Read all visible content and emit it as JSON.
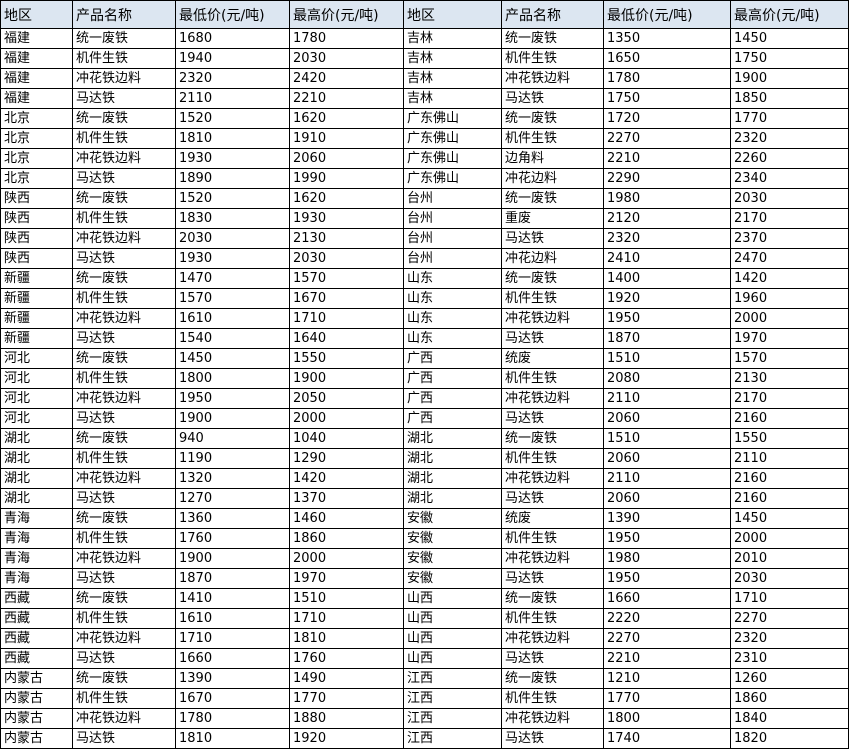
{
  "header": [
    "地区",
    "产品名称",
    "最低价(元/吨)",
    "最高价(元/吨)",
    "地区",
    "产品名称",
    "最低价(元/吨)",
    "最高价(元/吨)"
  ],
  "header_bg": "#dce6f1",
  "rows": [
    [
      "福建",
      "统一废铁",
      "1680",
      "1780",
      "吉林",
      "统一废铁",
      "1350",
      "1450"
    ],
    [
      "福建",
      "机件生铁",
      "1940",
      "2030",
      "吉林",
      "机件生铁",
      "1650",
      "1750"
    ],
    [
      "福建",
      "冲花铁边料",
      "2320",
      "2420",
      "吉林",
      "冲花铁边料",
      "1780",
      "1900"
    ],
    [
      "福建",
      "马达铁",
      "2110",
      "2210",
      "吉林",
      "马达铁",
      "1750",
      "1850"
    ],
    [
      "北京",
      "统一废铁",
      "1520",
      "1620",
      "广东佛山",
      "统一废铁",
      "1720",
      "1770"
    ],
    [
      "北京",
      "机件生铁",
      "1810",
      "1910",
      "广东佛山",
      "机件生铁",
      "2270",
      "2320"
    ],
    [
      "北京",
      "冲花铁边料",
      "1930",
      "2060",
      "广东佛山",
      "边角料",
      "2210",
      "2260"
    ],
    [
      "北京",
      "马达铁",
      "1890",
      "1990",
      "广东佛山",
      "冲花边料",
      "2290",
      "2340"
    ],
    [
      "陕西",
      "统一废铁",
      "1520",
      "1620",
      "台州",
      "统一废铁",
      "1980",
      "2030"
    ],
    [
      "陕西",
      "机件生铁",
      "1830",
      "1930",
      "台州",
      "重废",
      "2120",
      "2170"
    ],
    [
      "陕西",
      "冲花铁边料",
      "2030",
      "2130",
      "台州",
      "马达铁",
      "2320",
      "2370"
    ],
    [
      "陕西",
      "马达铁",
      "1930",
      "2030",
      "台州",
      "冲花边料",
      "2410",
      "2470"
    ],
    [
      "新疆",
      "统一废铁",
      "1470",
      "1570",
      "山东",
      "统一废铁",
      "1400",
      "1420"
    ],
    [
      "新疆",
      "机件生铁",
      "1570",
      "1670",
      "山东",
      "机件生铁",
      "1920",
      "1960"
    ],
    [
      "新疆",
      "冲花铁边料",
      "1610",
      "1710",
      "山东",
      "冲花铁边料",
      "1950",
      "2000"
    ],
    [
      "新疆",
      "马达铁",
      "1540",
      "1640",
      "山东",
      "马达铁",
      "1870",
      "1970"
    ],
    [
      "河北",
      "统一废铁",
      "1450",
      "1550",
      "广西",
      "统废",
      "1510",
      "1570"
    ],
    [
      "河北",
      "机件生铁",
      "1800",
      "1900",
      "广西",
      "机件生铁",
      "2080",
      "2130"
    ],
    [
      "河北",
      "冲花铁边料",
      "1950",
      "2050",
      "广西",
      "冲花铁边料",
      "2110",
      "2170"
    ],
    [
      "河北",
      "马达铁",
      "1900",
      "2000",
      "广西",
      "马达铁",
      "2060",
      "2160"
    ],
    [
      "湖北",
      "统一废铁",
      "940",
      "1040",
      "湖北",
      "统一废铁",
      "1510",
      "1550"
    ],
    [
      "湖北",
      "机件生铁",
      "1190",
      "1290",
      "湖北",
      "机件生铁",
      "2060",
      "2110"
    ],
    [
      "湖北",
      "冲花铁边料",
      "1320",
      "1420",
      "湖北",
      "冲花铁边料",
      "2110",
      "2160"
    ],
    [
      "湖北",
      "马达铁",
      "1270",
      "1370",
      "湖北",
      "马达铁",
      "2060",
      "2160"
    ],
    [
      "青海",
      "统一废铁",
      "1360",
      "1460",
      "安徽",
      "统废",
      "1390",
      "1450"
    ],
    [
      "青海",
      "机件生铁",
      "1760",
      "1860",
      "安徽",
      "机件生铁",
      "1950",
      "2000"
    ],
    [
      "青海",
      "冲花铁边料",
      "1900",
      "2000",
      "安徽",
      "冲花铁边料",
      "1980",
      "2010"
    ],
    [
      "青海",
      "马达铁",
      "1870",
      "1970",
      "安徽",
      "马达铁",
      "1950",
      "2030"
    ],
    [
      "西藏",
      "统一废铁",
      "1410",
      "1510",
      "山西",
      "统一废铁",
      "1660",
      "1710"
    ],
    [
      "西藏",
      "机件生铁",
      "1610",
      "1710",
      "山西",
      "机件生铁",
      "2220",
      "2270"
    ],
    [
      "西藏",
      "冲花铁边料",
      "1710",
      "1810",
      "山西",
      "冲花铁边料",
      "2270",
      "2320"
    ],
    [
      "西藏",
      "马达铁",
      "1660",
      "1760",
      "山西",
      "马达铁",
      "2210",
      "2310"
    ],
    [
      "内蒙古",
      "统一废铁",
      "1390",
      "1490",
      "江西",
      "统一废铁",
      "1210",
      "1260"
    ],
    [
      "内蒙古",
      "机件生铁",
      "1670",
      "1770",
      "江西",
      "机件生铁",
      "1770",
      "1860"
    ],
    [
      "内蒙古",
      "冲花铁边料",
      "1780",
      "1880",
      "江西",
      "冲花铁边料",
      "1800",
      "1840"
    ],
    [
      "内蒙古",
      "马达铁",
      "1810",
      "1920",
      "江西",
      "马达铁",
      "1740",
      "1820"
    ]
  ]
}
